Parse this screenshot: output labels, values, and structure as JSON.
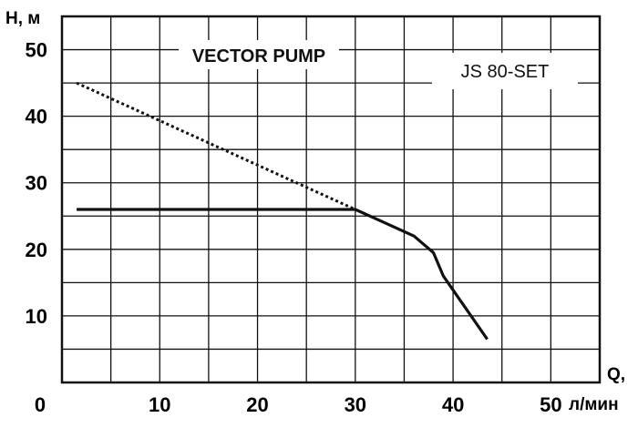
{
  "chart_data": {
    "type": "line",
    "title": "VECTOR PUMP",
    "model_label": "JS 80-SET",
    "ylabel": "Н, м",
    "xlabel_line1": "Q,",
    "xlabel_line2": "л/мин",
    "xlim": [
      0,
      55
    ],
    "ylim": [
      0,
      55
    ],
    "x_ticks": [
      0,
      10,
      20,
      30,
      40,
      50
    ],
    "y_ticks": [
      10,
      20,
      30,
      40,
      50
    ],
    "grid": true,
    "series": [
      {
        "style": "solid",
        "color": "#111111",
        "x": [
          1.5,
          30,
          33,
          36,
          38,
          39,
          43.5
        ],
        "y": [
          26,
          26,
          24,
          22,
          19.5,
          16,
          6.5
        ]
      },
      {
        "style": "dotted",
        "color": "#111111",
        "x": [
          1.5,
          30
        ],
        "y": [
          45,
          26
        ]
      }
    ]
  }
}
